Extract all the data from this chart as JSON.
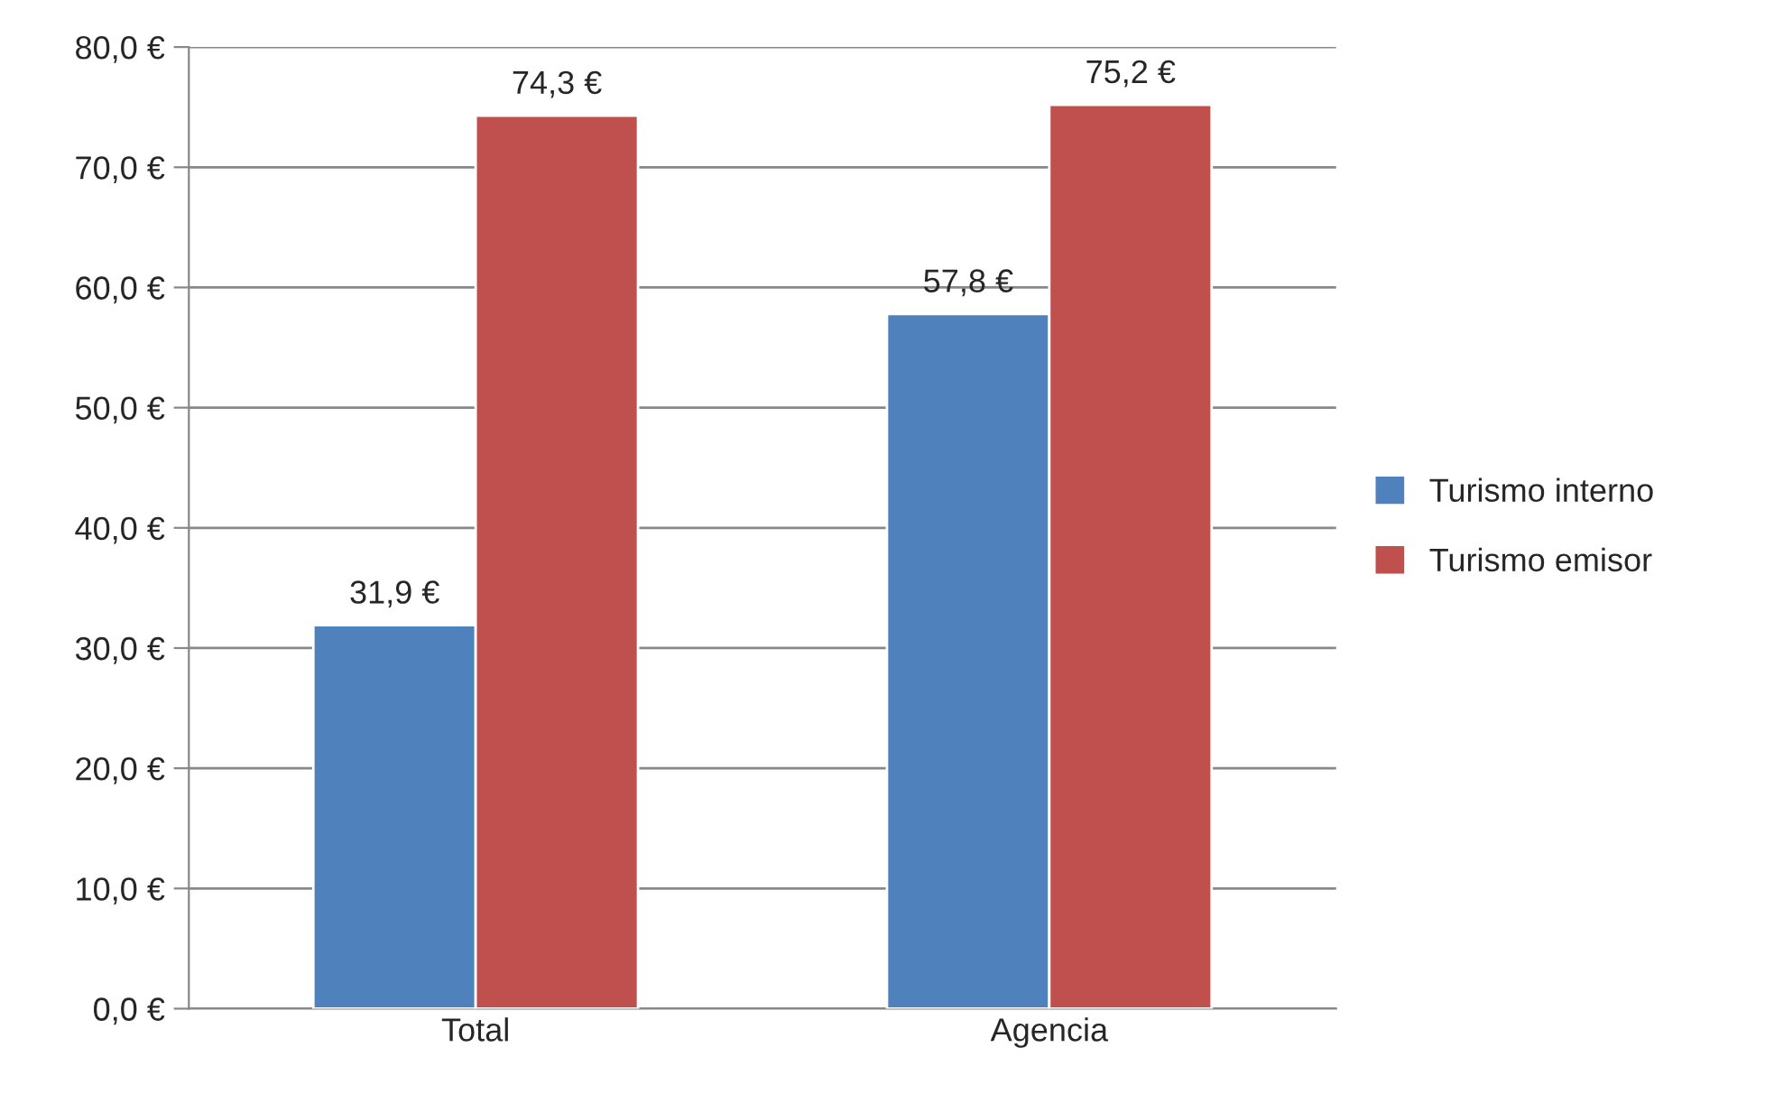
{
  "chart_data": {
    "type": "bar",
    "categories": [
      "Total",
      "Agencia"
    ],
    "series": [
      {
        "name": "Turismo interno",
        "color": "#4f81bd",
        "values": [
          31.9,
          57.8
        ],
        "value_labels": [
          "31,9 €",
          "57,8 €"
        ]
      },
      {
        "name": "Turismo emisor",
        "color": "#c0504d",
        "values": [
          74.3,
          75.2
        ],
        "value_labels": [
          "74,3 €",
          "75,2 €"
        ]
      }
    ],
    "ylim": [
      0,
      80
    ],
    "yticks": [
      {
        "value": 0,
        "label": "0,0 €"
      },
      {
        "value": 10,
        "label": "10,0 €"
      },
      {
        "value": 20,
        "label": "20,0 €"
      },
      {
        "value": 30,
        "label": "30,0 €"
      },
      {
        "value": 40,
        "label": "40,0 €"
      },
      {
        "value": 50,
        "label": "50,0 €"
      },
      {
        "value": 60,
        "label": "60,0 €"
      },
      {
        "value": 70,
        "label": "70,0 €"
      },
      {
        "value": 80,
        "label": "80,0 €"
      }
    ],
    "grid": "y",
    "legend": "right"
  }
}
